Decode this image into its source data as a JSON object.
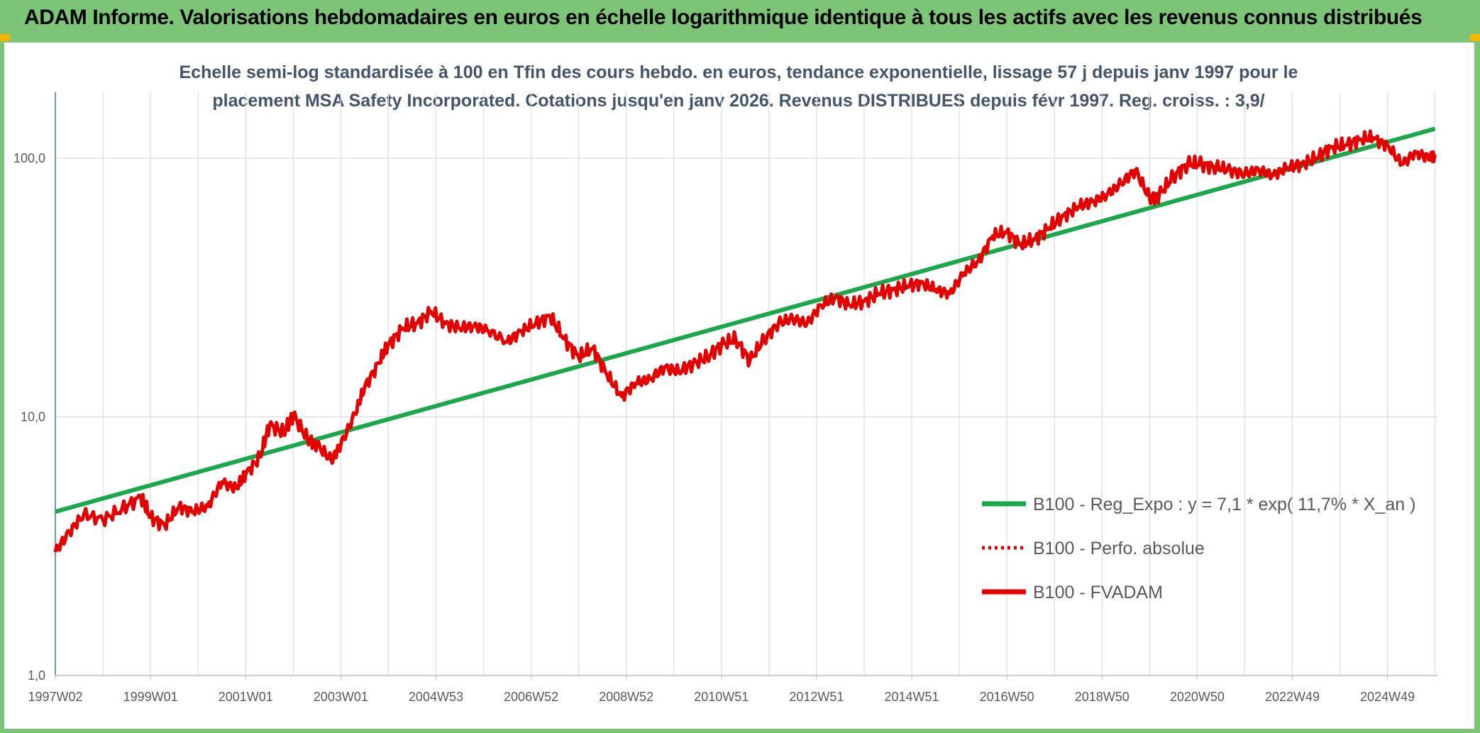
{
  "header": {
    "title": "ADAM Informe. Valorisations hebdomadaires en euros en échelle logarithmique identique à tous les actifs avec les revenus connus distribués"
  },
  "colors": {
    "header_bg": "#7cc576",
    "trend_line": "#1aa84b",
    "price_line": "#e50000",
    "corner_accent": "#f4b400"
  },
  "chart_data": {
    "type": "line",
    "scale": "log",
    "title_lines": [
      "Echelle semi-log standardisée à 100 en Tfin des cours hebdo. en euros, tendance exponentielle, lissage 57 j depuis janv 1997 pour le",
      "placement MSA Safety Incorporated. Cotations jusqu'en janv 2026. Revenus DISTRIBUES depuis févr 1997. Reg. croiss. : 3,9/"
    ],
    "ylim": [
      1,
      180
    ],
    "yticks": [
      {
        "value": 1,
        "label": "1,0"
      },
      {
        "value": 10,
        "label": "10,0"
      },
      {
        "value": 100,
        "label": "100,0"
      }
    ],
    "xlim": [
      1997.0,
      2026.05
    ],
    "xticks": [
      {
        "value": 1997.0,
        "label": "1997W02"
      },
      {
        "value": 1999.0,
        "label": "1999W01"
      },
      {
        "value": 2001.0,
        "label": "2001W01"
      },
      {
        "value": 2003.0,
        "label": "2003W01"
      },
      {
        "value": 2005.0,
        "label": "2004W53"
      },
      {
        "value": 2007.0,
        "label": "2006W52"
      },
      {
        "value": 2009.0,
        "label": "2008W52"
      },
      {
        "value": 2011.0,
        "label": "2010W51"
      },
      {
        "value": 2013.0,
        "label": "2012W51"
      },
      {
        "value": 2015.0,
        "label": "2014W51"
      },
      {
        "value": 2017.0,
        "label": "2016W50"
      },
      {
        "value": 2019.0,
        "label": "2018W50"
      },
      {
        "value": 2021.0,
        "label": "2020W50"
      },
      {
        "value": 2023.0,
        "label": "2022W49"
      },
      {
        "value": 2025.0,
        "label": "2024W49"
      }
    ],
    "legend": [
      {
        "label": "B100 - Reg_Expo : y = 7,1 * exp( 11,7% *  X_an )",
        "style": "solid-green"
      },
      {
        "label": "B100 - Perfo. absolue",
        "style": "dotted-red"
      },
      {
        "label": "B100 - FVADAM",
        "style": "solid-red"
      }
    ],
    "series": [
      {
        "name": "B100 - Reg_Expo",
        "x": [
          1997.0,
          2026.0
        ],
        "values": [
          4.3,
          130
        ]
      },
      {
        "name": "B100 - FVADAM",
        "x": [
          1997.0,
          1997.3,
          1997.6,
          1998.0,
          1998.4,
          1998.8,
          1999.0,
          1999.3,
          1999.6,
          1999.9,
          2000.2,
          2000.5,
          2000.8,
          2001.0,
          2001.3,
          2001.5,
          2001.8,
          2002.0,
          2002.3,
          2002.5,
          2002.8,
          2003.0,
          2003.3,
          2003.5,
          2003.8,
          2004.0,
          2004.3,
          2004.6,
          2004.9,
          2005.2,
          2005.5,
          2005.8,
          2006.1,
          2006.5,
          2006.8,
          2007.1,
          2007.4,
          2007.7,
          2008.0,
          2008.3,
          2008.6,
          2008.9,
          2009.2,
          2009.5,
          2009.8,
          2010.1,
          2010.4,
          2010.7,
          2011.0,
          2011.3,
          2011.6,
          2011.9,
          2012.2,
          2012.5,
          2012.8,
          2013.1,
          2013.4,
          2013.7,
          2014.0,
          2014.3,
          2014.6,
          2014.9,
          2015.2,
          2015.5,
          2015.8,
          2016.1,
          2016.4,
          2016.7,
          2017.0,
          2017.3,
          2017.6,
          2017.9,
          2018.2,
          2018.5,
          2018.8,
          2019.1,
          2019.4,
          2019.7,
          2020.0,
          2020.2,
          2020.5,
          2020.8,
          2021.1,
          2021.4,
          2021.7,
          2022.0,
          2022.3,
          2022.6,
          2022.9,
          2023.2,
          2023.5,
          2023.8,
          2024.1,
          2024.4,
          2024.7,
          2025.0,
          2025.3,
          2025.6,
          2025.9,
          2026.0
        ],
        "values": [
          3.0,
          3.6,
          4.2,
          4.0,
          4.4,
          4.9,
          4.1,
          3.8,
          4.5,
          4.3,
          4.5,
          5.6,
          5.3,
          6.0,
          7.0,
          9.3,
          8.7,
          10.2,
          8.2,
          7.8,
          6.8,
          7.8,
          10.3,
          13.0,
          16.2,
          19.0,
          22.0,
          23.0,
          25.5,
          23.0,
          22.0,
          22.5,
          21.5,
          19.5,
          21.5,
          23.0,
          24.5,
          20.0,
          17.0,
          18.5,
          14.5,
          12.0,
          13.5,
          14.0,
          15.5,
          15.0,
          16.0,
          17.0,
          19.0,
          20.0,
          16.5,
          20.0,
          23.0,
          24.0,
          23.0,
          27.0,
          29.0,
          27.0,
          28.0,
          30.0,
          31.0,
          32.0,
          33.0,
          31.0,
          30.0,
          36.0,
          40.0,
          50.0,
          52.0,
          46.0,
          49.0,
          54.0,
          60.0,
          65.0,
          68.0,
          72.0,
          80.0,
          90.0,
          70.0,
          72.0,
          85.0,
          95.0,
          95.0,
          92.0,
          90.0,
          87.0,
          90.0,
          86.0,
          92.0,
          95.0,
          100.0,
          110.0,
          112.0,
          118.0,
          120.0,
          112.0,
          95.0,
          105.0,
          100.0,
          101.0
        ]
      }
    ]
  }
}
